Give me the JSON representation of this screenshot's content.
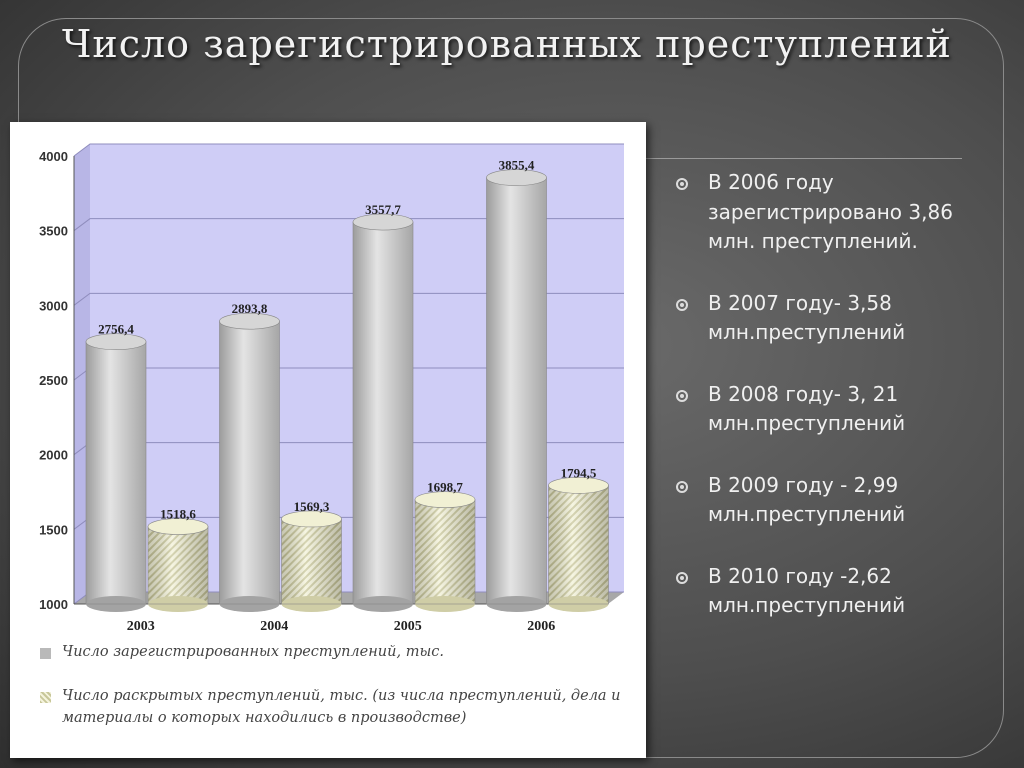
{
  "slide": {
    "title": "Число зарегистрированных преступлений"
  },
  "bullets": [
    " В 2006 году зарегистрировано 3,86 млн. преступлений.",
    "В 2007 году- 3,58 млн.преступлений",
    "В 2008 году- 3, 21 млн.преступлений",
    "В 2009 году - 2,99 млн.преступлений",
    "В 2010 году -2,62 млн.преступлений"
  ],
  "chart_data": {
    "type": "bar",
    "categories": [
      "2003",
      "2004",
      "2005",
      "2006"
    ],
    "series": [
      {
        "name": "Число зарегистрированных преступлений, тыс.",
        "values": [
          2756.4,
          2893.8,
          3557.7,
          3855.4
        ],
        "labels": [
          "2756,4",
          "2893,8",
          "3557,7",
          "3855,4"
        ],
        "color": "#bdbdbd"
      },
      {
        "name": "Число раскрытых преступлений, тыс. (из числа преступлений, дела и материалы о которых находились в производстве)",
        "values": [
          1518.6,
          1569.3,
          1698.7,
          1794.5
        ],
        "labels": [
          "1518,6",
          "1569,3",
          "1698,7",
          "1794,5"
        ],
        "color": "#e8e6c4"
      }
    ],
    "yticks": [
      "1000",
      "1500",
      "2000",
      "2500",
      "3000",
      "3500",
      "4000"
    ],
    "ylim": [
      1000,
      4000
    ],
    "grid": true,
    "legend_position": "bottom",
    "colors": {
      "plot_background": "#cfcdf6",
      "floor": "#aaaaaa"
    }
  }
}
